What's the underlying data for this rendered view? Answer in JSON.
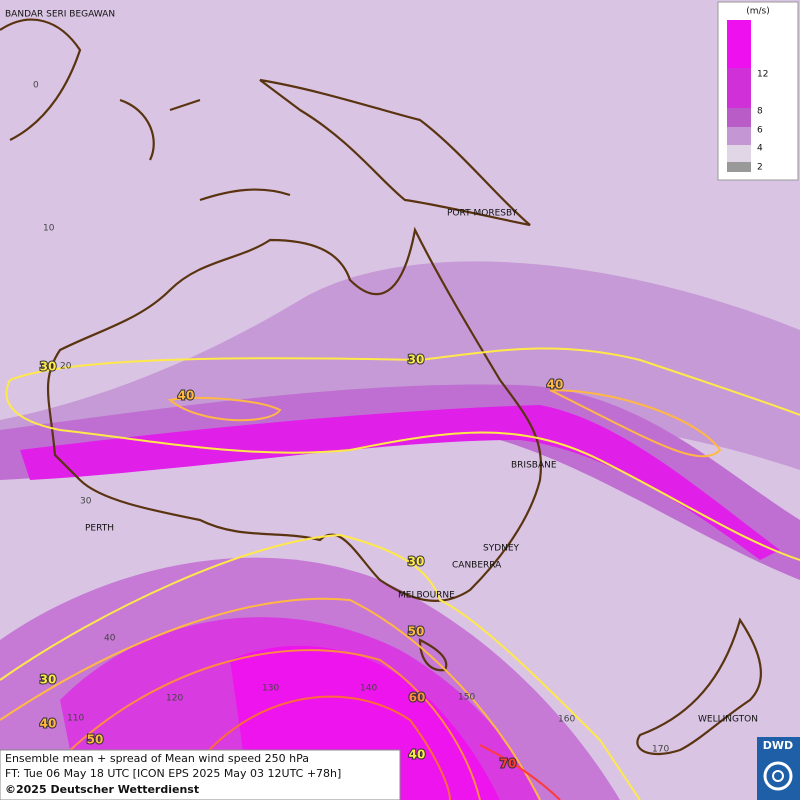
{
  "cities": [
    "BANDAR SERI BEGAWAN",
    "PORT MORESBY",
    "BRISBANE",
    "PERTH",
    "SYDNEY",
    "CANBERRA",
    "MELBOURNE",
    "WELLINGTON"
  ],
  "grid_labels": [
    "0",
    "10",
    "20",
    "30",
    "40",
    "110",
    "120",
    "130",
    "140",
    "150",
    "160",
    "170"
  ],
  "contour_labels": [
    "30",
    "40",
    "30",
    "40",
    "30",
    "50",
    "60",
    "40",
    "70",
    "30",
    "40",
    "50"
  ],
  "legend": {
    "unit": "(m/s)",
    "ticks": [
      "12",
      "8",
      "6",
      "4",
      "2"
    ]
  },
  "footer": {
    "line1": "Ensemble mean + spread of Mean wind speed 250 hPa",
    "line2": "FT: Tue 06 May 18 UTC [ICON EPS 2025 May 03 12UTC +78h]",
    "line3": "©2025 Deutscher Wetterdienst"
  },
  "logo": "DWD"
}
